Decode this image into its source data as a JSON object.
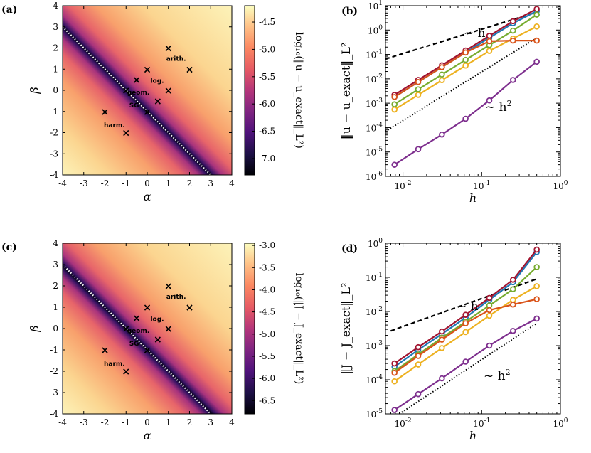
{
  "chart_data": [
    {
      "type": "heatmap",
      "panel_label": "(a)",
      "xlabel": "α",
      "ylabel": "β",
      "xlim": [
        -4,
        4
      ],
      "ylim": [
        -4,
        4
      ],
      "xticks": [
        "-4",
        "-3",
        "-2",
        "-1",
        "0",
        "1",
        "2",
        "3",
        "4"
      ],
      "yticks": [
        "4",
        "3",
        "2",
        "1",
        "0",
        "-1",
        "-2",
        "-3",
        "-4"
      ],
      "colorbar_label": "log₁₀(‖u − u_exact‖_L²)",
      "colorbar_range": [
        -7.3,
        -4.2
      ],
      "colorbar_ticks": [
        "-4.5",
        "-5.0",
        "-5.5",
        "-6.0",
        "-6.5",
        "-7.0"
      ],
      "colorbar_tick_values": [
        -4.5,
        -5.0,
        -5.5,
        -6.0,
        -6.5,
        -7.0
      ],
      "dotted_line": "α + β = -1",
      "markers": [
        {
          "alpha": 1,
          "beta": 2,
          "label": "arith."
        },
        {
          "alpha": 2,
          "beta": 1,
          "label": ""
        },
        {
          "alpha": 0,
          "beta": 1,
          "label": ""
        },
        {
          "alpha": -0.5,
          "beta": 0.5,
          "label": "log."
        },
        {
          "alpha": -1,
          "beta": 0,
          "label": ""
        },
        {
          "alpha": 1,
          "beta": 0,
          "label": ""
        },
        {
          "alpha": 0.5,
          "beta": -0.5,
          "label": "geom."
        },
        {
          "alpha": 0,
          "beta": -1,
          "label": "SG"
        },
        {
          "alpha": -2,
          "beta": -1,
          "label": "harm."
        },
        {
          "alpha": -1,
          "beta": -2,
          "label": ""
        }
      ]
    },
    {
      "type": "line",
      "panel_label": "(b)",
      "xlabel": "h",
      "ylabel": "‖u − u_exact‖_L²",
      "xscale": "log",
      "yscale": "log",
      "xlim": [
        0.006,
        1.0
      ],
      "ylim": [
        1e-06,
        10
      ],
      "xticks": [
        {
          "v": 0.01,
          "b": "10",
          "e": "-2"
        },
        {
          "v": 0.1,
          "b": "10",
          "e": "-1"
        },
        {
          "v": 1,
          "b": "10",
          "e": "0"
        }
      ],
      "yticks": [
        {
          "v": 10,
          "b": "10",
          "e": "1"
        },
        {
          "v": 1,
          "b": "10",
          "e": "0"
        },
        {
          "v": 0.1,
          "b": "10",
          "e": "-1"
        },
        {
          "v": 0.01,
          "b": "10",
          "e": "-2"
        },
        {
          "v": 0.001,
          "b": "10",
          "e": "-3"
        },
        {
          "v": 0.0001,
          "b": "10",
          "e": "-4"
        },
        {
          "v": 1e-05,
          "b": "10",
          "e": "-5"
        },
        {
          "v": 1e-06,
          "b": "10",
          "e": "-6"
        }
      ],
      "x": [
        0.0078125,
        0.015625,
        0.03125,
        0.0625,
        0.125,
        0.25,
        0.5
      ],
      "series": [
        {
          "name": "blue",
          "color": "#1f77b4",
          "values": [
            0.0018,
            0.0074,
            0.03,
            0.12,
            0.48,
            1.9,
            6.0
          ]
        },
        {
          "name": "red",
          "color": "#a2142f",
          "values": [
            0.0022,
            0.009,
            0.036,
            0.145,
            0.58,
            2.3,
            7.3
          ]
        },
        {
          "name": "green",
          "color": "#77ac30",
          "values": [
            0.0009,
            0.0037,
            0.015,
            0.06,
            0.24,
            0.95,
            4.3
          ]
        },
        {
          "name": "yellow",
          "color": "#edb120",
          "values": [
            0.00055,
            0.0022,
            0.0088,
            0.035,
            0.14,
            0.45,
            1.4
          ]
        },
        {
          "name": "orange",
          "color": "#d95319",
          "values": [
            0.0018,
            0.0074,
            0.03,
            0.12,
            0.35,
            0.37,
            0.37
          ]
        },
        {
          "name": "purple",
          "color": "#7e2f8e",
          "values": [
            3e-06,
            1.3e-05,
            5.2e-05,
            0.00023,
            0.0013,
            0.009,
            0.05
          ]
        }
      ],
      "guides": [
        {
          "label_base": "~ h",
          "label_sup": "",
          "style": "dashed",
          "x0": 0.006,
          "y0": 0.065,
          "x1": 0.5,
          "y1": 5.4
        },
        {
          "label_base": "~ h",
          "label_sup": "2",
          "style": "dotted",
          "x0": 0.006,
          "y0": 7e-05,
          "x1": 0.5,
          "y1": 0.48
        }
      ]
    },
    {
      "type": "heatmap",
      "panel_label": "(c)",
      "xlabel": "α",
      "ylabel": "β",
      "xlim": [
        -4,
        4
      ],
      "ylim": [
        -4,
        4
      ],
      "xticks": [
        "-4",
        "-3",
        "-2",
        "-1",
        "0",
        "1",
        "2",
        "3",
        "4"
      ],
      "yticks": [
        "4",
        "3",
        "2",
        "1",
        "0",
        "-1",
        "-2",
        "-3",
        "-4"
      ],
      "colorbar_label": "log₁₀(‖J − J_exact‖_L²)",
      "colorbar_range": [
        -6.8,
        -2.95
      ],
      "colorbar_ticks": [
        "-3.0",
        "-3.5",
        "-4.0",
        "-4.5",
        "-5.0",
        "-5.5",
        "-6.0",
        "-6.5"
      ],
      "colorbar_tick_values": [
        -3.0,
        -3.5,
        -4.0,
        -4.5,
        -5.0,
        -5.5,
        -6.0,
        -6.5
      ],
      "dotted_line": "α + β = -1",
      "markers": [
        {
          "alpha": 1,
          "beta": 2,
          "label": "arith."
        },
        {
          "alpha": 2,
          "beta": 1,
          "label": ""
        },
        {
          "alpha": 0,
          "beta": 1,
          "label": ""
        },
        {
          "alpha": -0.5,
          "beta": 0.5,
          "label": "log."
        },
        {
          "alpha": -1,
          "beta": 0,
          "label": ""
        },
        {
          "alpha": 1,
          "beta": 0,
          "label": ""
        },
        {
          "alpha": 0.5,
          "beta": -0.5,
          "label": "geom."
        },
        {
          "alpha": 0,
          "beta": -1,
          "label": "SG"
        },
        {
          "alpha": -2,
          "beta": -1,
          "label": "harm."
        },
        {
          "alpha": -1,
          "beta": -2,
          "label": ""
        }
      ]
    },
    {
      "type": "line",
      "panel_label": "(d)",
      "xlabel": "h",
      "ylabel": "‖J − J_exact‖_L²",
      "xscale": "log",
      "yscale": "log",
      "xlim": [
        0.006,
        1.0
      ],
      "ylim": [
        1e-05,
        1
      ],
      "xticks": [
        {
          "v": 0.01,
          "b": "10",
          "e": "-2"
        },
        {
          "v": 0.1,
          "b": "10",
          "e": "-1"
        },
        {
          "v": 1,
          "b": "10",
          "e": "0"
        }
      ],
      "yticks": [
        {
          "v": 1,
          "b": "10",
          "e": "0"
        },
        {
          "v": 0.1,
          "b": "10",
          "e": "-1"
        },
        {
          "v": 0.01,
          "b": "10",
          "e": "-2"
        },
        {
          "v": 0.001,
          "b": "10",
          "e": "-3"
        },
        {
          "v": 0.0001,
          "b": "10",
          "e": "-4"
        },
        {
          "v": 1e-05,
          "b": "10",
          "e": "-5"
        }
      ],
      "x": [
        0.0078125,
        0.015625,
        0.03125,
        0.0625,
        0.125,
        0.25,
        0.5
      ],
      "series": [
        {
          "name": "blue",
          "color": "#1f77b4",
          "values": [
            0.00024,
            0.00075,
            0.0022,
            0.0066,
            0.022,
            0.072,
            0.55
          ]
        },
        {
          "name": "red",
          "color": "#a2142f",
          "values": [
            0.0003,
            0.0009,
            0.0026,
            0.008,
            0.025,
            0.085,
            0.65
          ]
        },
        {
          "name": "green",
          "color": "#77ac30",
          "values": [
            0.00018,
            0.00055,
            0.0017,
            0.005,
            0.015,
            0.045,
            0.2
          ]
        },
        {
          "name": "yellow",
          "color": "#edb120",
          "values": [
            9e-05,
            0.00028,
            0.00085,
            0.0025,
            0.0075,
            0.022,
            0.055
          ]
        },
        {
          "name": "orange",
          "color": "#d95319",
          "values": [
            0.00016,
            0.0005,
            0.0015,
            0.0045,
            0.011,
            0.016,
            0.023
          ]
        },
        {
          "name": "purple",
          "color": "#7e2f8e",
          "values": [
            1.3e-05,
            3.8e-05,
            0.00011,
            0.00034,
            0.001,
            0.0027,
            0.0062
          ]
        }
      ],
      "guides": [
        {
          "label_base": "~ h",
          "label_sup": "",
          "style": "dashed",
          "x0": 0.007,
          "y0": 0.0027,
          "x1": 0.5,
          "y1": 0.09
        },
        {
          "label_base": "~ h",
          "label_sup": "2",
          "style": "dotted",
          "x0": 0.009,
          "y0": 1e-05,
          "x1": 0.5,
          "y1": 0.0045
        }
      ]
    }
  ]
}
